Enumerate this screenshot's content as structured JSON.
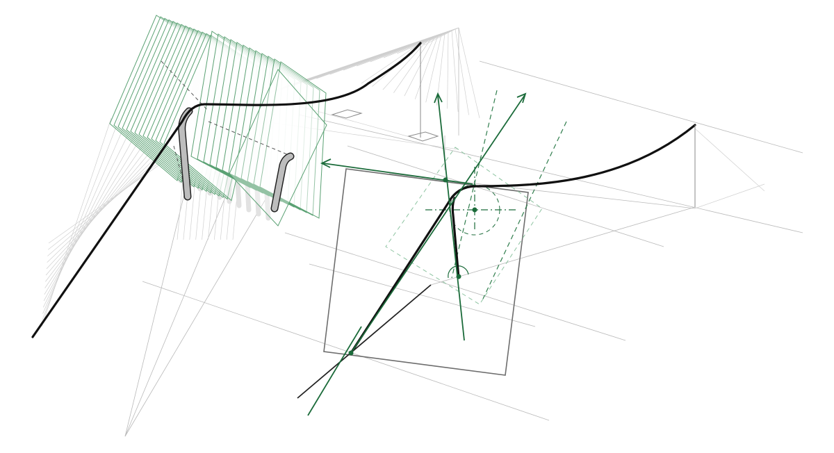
{
  "diagram": {
    "colors": {
      "accent_green": "#1b6b3a",
      "plane_green": "#5aa173",
      "curve_black": "#111111",
      "frame_grey": "#6d6d6d",
      "construction_grey": "#b9b9b9"
    },
    "icons": [
      "arrow-head-icon"
    ]
  }
}
